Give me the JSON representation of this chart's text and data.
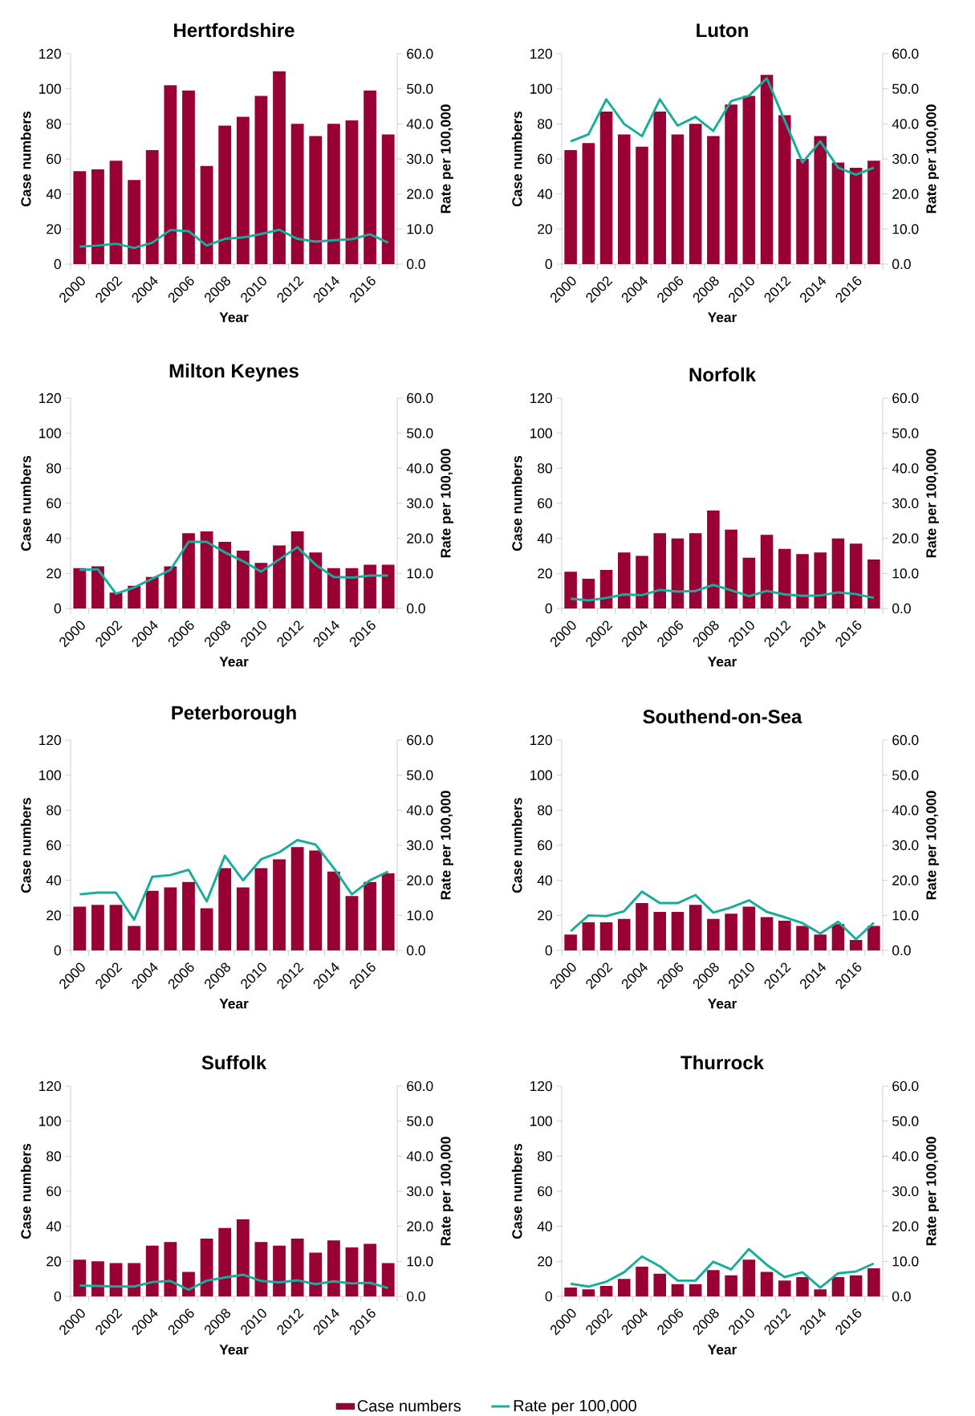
{
  "chart_data": [
    {
      "type": "bar",
      "title": "Hertfordshire",
      "xlabel": "Year",
      "ylabel": "Case numbers",
      "y2label": "Rate per 100,000",
      "categories": [
        "2000",
        null,
        "2002",
        null,
        "2004",
        null,
        "2006",
        null,
        "2008",
        null,
        "2010",
        null,
        "2012",
        null,
        "2014",
        null,
        "2016",
        null
      ],
      "ylim": [
        0,
        120
      ],
      "yticks": [
        0,
        20,
        40,
        60,
        80,
        100,
        120
      ],
      "y2lim": [
        0,
        60
      ],
      "y2ticks": [
        {
          "value": 0,
          "label": "0.0"
        },
        {
          "value": 10,
          "label": "10.0"
        },
        {
          "value": 20,
          "label": "20.0"
        },
        {
          "value": 30,
          "label": "30.0"
        },
        {
          "value": 40,
          "label": "40.0"
        },
        {
          "value": 50,
          "label": "50.0"
        },
        {
          "value": 60,
          "label": "60.0"
        }
      ],
      "series": [
        {
          "type": "bar",
          "color": "#990033",
          "values": [
            53,
            54,
            59,
            48,
            65,
            102,
            99,
            56,
            79,
            84,
            96,
            110,
            80,
            73,
            80,
            82,
            99,
            74
          ]
        },
        {
          "type": "line",
          "axis": "y2",
          "color": "#17ad9d",
          "values": [
            5.0,
            5.3,
            5.8,
            4.6,
            6.1,
            9.7,
            9.4,
            5.3,
            7.2,
            7.6,
            8.6,
            9.8,
            7.2,
            6.4,
            6.8,
            7.1,
            8.5,
            6.1
          ]
        }
      ]
    },
    {
      "type": "bar",
      "title": "Luton",
      "xlabel": "Year",
      "ylabel": "Case numbers",
      "y2label": "Rate per 100,000",
      "categories": [
        "2000",
        null,
        "2002",
        null,
        "2004",
        null,
        "2006",
        null,
        "2008",
        null,
        "2010",
        null,
        "2012",
        null,
        "2014",
        null,
        "2016",
        null
      ],
      "ylim": [
        0,
        120
      ],
      "yticks": [
        0,
        20,
        40,
        60,
        80,
        100,
        120
      ],
      "y2lim": [
        0,
        60
      ],
      "y2ticks": [
        {
          "value": 0,
          "label": "0.0"
        },
        {
          "value": 10,
          "label": "10.0"
        },
        {
          "value": 20,
          "label": "20.0"
        },
        {
          "value": 30,
          "label": "30.0"
        },
        {
          "value": 40,
          "label": "40.0"
        },
        {
          "value": 50,
          "label": "50.0"
        },
        {
          "value": 60,
          "label": "60.0"
        }
      ],
      "series": [
        {
          "type": "bar",
          "color": "#990033",
          "values": [
            65,
            69,
            87,
            74,
            67,
            87,
            74,
            80,
            73,
            91,
            96,
            108,
            85,
            60,
            73,
            58,
            55,
            59
          ]
        },
        {
          "type": "line",
          "axis": "y2",
          "color": "#17ad9d",
          "values": [
            35,
            37,
            47,
            40,
            36.5,
            47,
            39.5,
            42,
            38,
            46.5,
            48,
            53,
            41,
            29,
            35,
            27.5,
            25.5,
            27.5
          ]
        }
      ]
    },
    {
      "type": "bar",
      "title": "Milton Keynes",
      "xlabel": "Year",
      "ylabel": "Case numbers",
      "y2label": "Rate per 100,000",
      "categories": [
        "2000",
        null,
        "2002",
        null,
        "2004",
        null,
        "2006",
        null,
        "2008",
        null,
        "2010",
        null,
        "2012",
        null,
        "2014",
        null,
        "2016",
        null
      ],
      "ylim": [
        0,
        120
      ],
      "yticks": [
        0,
        20,
        40,
        60,
        80,
        100,
        120
      ],
      "y2lim": [
        0,
        60
      ],
      "y2ticks": [
        {
          "value": 0,
          "label": "0.0"
        },
        {
          "value": 10,
          "label": "10.0"
        },
        {
          "value": 20,
          "label": "20.0"
        },
        {
          "value": 30,
          "label": "30.0"
        },
        {
          "value": 40,
          "label": "40.0"
        },
        {
          "value": 50,
          "label": "50.0"
        },
        {
          "value": 60,
          "label": "60.0"
        }
      ],
      "series": [
        {
          "type": "bar",
          "color": "#990033",
          "values": [
            23,
            24,
            9,
            13,
            18,
            24,
            43,
            44,
            38,
            33,
            26,
            36,
            44,
            32,
            23,
            23,
            25,
            25
          ]
        },
        {
          "type": "line",
          "axis": "y2",
          "color": "#17ad9d",
          "values": [
            11,
            11.2,
            4.2,
            6,
            8.5,
            11,
            19,
            19,
            16,
            13.5,
            10.5,
            14,
            17.5,
            12.5,
            9,
            8.8,
            9.4,
            9.4
          ]
        }
      ]
    },
    {
      "type": "bar",
      "title": "Norfolk",
      "xlabel": "Year",
      "ylabel": "Case numbers",
      "y2label": "Rate per 100,000",
      "categories": [
        "2000",
        null,
        "2002",
        null,
        "2004",
        null,
        "2006",
        null,
        "2008",
        null,
        "2010",
        null,
        "2012",
        null,
        "2014",
        null,
        "2016",
        null
      ],
      "ylim": [
        0,
        120
      ],
      "yticks": [
        0,
        20,
        40,
        60,
        80,
        100,
        120
      ],
      "y2lim": [
        0,
        60
      ],
      "y2ticks": [
        {
          "value": 0,
          "label": "0.0"
        },
        {
          "value": 10,
          "label": "10.0"
        },
        {
          "value": 20,
          "label": "20.0"
        },
        {
          "value": 30,
          "label": "30.0"
        },
        {
          "value": 40,
          "label": "40.0"
        },
        {
          "value": 50,
          "label": "50.0"
        },
        {
          "value": 60,
          "label": "60.0"
        }
      ],
      "series": [
        {
          "type": "bar",
          "color": "#990033",
          "values": [
            21,
            17,
            22,
            32,
            30,
            43,
            40,
            43,
            56,
            45,
            29,
            42,
            34,
            31,
            32,
            40,
            37,
            28
          ]
        },
        {
          "type": "line",
          "axis": "y2",
          "color": "#17ad9d",
          "values": [
            2.8,
            2.3,
            3.0,
            4.0,
            3.8,
            5.3,
            4.8,
            5.0,
            6.7,
            5.2,
            3.5,
            5.0,
            4.0,
            3.6,
            3.7,
            4.6,
            4.1,
            3.0
          ]
        }
      ]
    },
    {
      "type": "bar",
      "title": "Peterborough",
      "xlabel": "Year",
      "ylabel": "Case numbers",
      "y2label": "Rate per 100,000",
      "categories": [
        "2000",
        null,
        "2002",
        null,
        "2004",
        null,
        "2006",
        null,
        "2008",
        null,
        "2010",
        null,
        "2012",
        null,
        "2014",
        null,
        "2016",
        null
      ],
      "ylim": [
        0,
        120
      ],
      "yticks": [
        0,
        20,
        40,
        60,
        80,
        100,
        120
      ],
      "y2lim": [
        0,
        60
      ],
      "y2ticks": [
        {
          "value": 0,
          "label": "0.0"
        },
        {
          "value": 10,
          "label": "10.0"
        },
        {
          "value": 20,
          "label": "20.0"
        },
        {
          "value": 30,
          "label": "30.0"
        },
        {
          "value": 40,
          "label": "40.0"
        },
        {
          "value": 50,
          "label": "50.0"
        },
        {
          "value": 60,
          "label": "60.0"
        }
      ],
      "series": [
        {
          "type": "bar",
          "color": "#990033",
          "values": [
            25,
            26,
            26,
            14,
            34,
            36,
            39,
            24,
            47,
            36,
            47,
            52,
            59,
            57,
            45,
            31,
            39,
            44
          ]
        },
        {
          "type": "line",
          "axis": "y2",
          "color": "#17ad9d",
          "values": [
            16,
            16.5,
            16.5,
            8.8,
            21,
            21.5,
            23,
            14,
            27,
            20,
            26,
            28,
            31.5,
            30.2,
            23.5,
            16,
            20,
            22.5
          ]
        }
      ]
    },
    {
      "type": "bar",
      "title": "Southend-on-Sea",
      "xlabel": "Year",
      "ylabel": "Case numbers",
      "y2label": "Rate per 100,000",
      "categories": [
        "2000",
        null,
        "2002",
        null,
        "2004",
        null,
        "2006",
        null,
        "2008",
        null,
        "2010",
        null,
        "2012",
        null,
        "2014",
        null,
        "2016",
        null
      ],
      "ylim": [
        0,
        120
      ],
      "yticks": [
        0,
        20,
        40,
        60,
        80,
        100,
        120
      ],
      "y2lim": [
        0,
        60
      ],
      "y2ticks": [
        {
          "value": 0,
          "label": "0.0"
        },
        {
          "value": 10,
          "label": "10.0"
        },
        {
          "value": 20,
          "label": "20.0"
        },
        {
          "value": 30,
          "label": "30.0"
        },
        {
          "value": 40,
          "label": "40.0"
        },
        {
          "value": 50,
          "label": "50.0"
        },
        {
          "value": 60,
          "label": "60.0"
        }
      ],
      "series": [
        {
          "type": "bar",
          "color": "#990033",
          "values": [
            9,
            16,
            16,
            18,
            27,
            22,
            22,
            26,
            18,
            21,
            25,
            19,
            17,
            14,
            9,
            15,
            6,
            14
          ]
        },
        {
          "type": "line",
          "axis": "y2",
          "color": "#17ad9d",
          "values": [
            5.5,
            10,
            9.8,
            11.2,
            16.8,
            13.5,
            13.5,
            15.8,
            10.8,
            12.3,
            14.3,
            11,
            9.5,
            7.8,
            4.8,
            8.2,
            3.2,
            7.9
          ]
        }
      ]
    },
    {
      "type": "bar",
      "title": "Suffolk",
      "xlabel": "Year",
      "ylabel": "Case numbers",
      "y2label": "Rate per 100,000",
      "categories": [
        "2000",
        null,
        "2002",
        null,
        "2004",
        null,
        "2006",
        null,
        "2008",
        null,
        "2010",
        null,
        "2012",
        null,
        "2014",
        null,
        "2016",
        null
      ],
      "ylim": [
        0,
        120
      ],
      "yticks": [
        0,
        20,
        40,
        60,
        80,
        100,
        120
      ],
      "y2lim": [
        0,
        60
      ],
      "y2ticks": [
        {
          "value": 0,
          "label": "0.0"
        },
        {
          "value": 10,
          "label": "10.0"
        },
        {
          "value": 20,
          "label": "20.0"
        },
        {
          "value": 30,
          "label": "30.0"
        },
        {
          "value": 40,
          "label": "40.0"
        },
        {
          "value": 50,
          "label": "50.0"
        },
        {
          "value": 60,
          "label": "60.0"
        }
      ],
      "series": [
        {
          "type": "bar",
          "color": "#990033",
          "values": [
            21,
            20,
            19,
            19,
            29,
            31,
            14,
            33,
            39,
            44,
            31,
            29,
            33,
            25,
            32,
            28,
            30,
            19
          ]
        },
        {
          "type": "line",
          "axis": "y2",
          "color": "#17ad9d",
          "values": [
            3.1,
            3.0,
            2.8,
            2.8,
            4.1,
            4.4,
            1.9,
            4.5,
            5.4,
            6.2,
            4.4,
            4.0,
            4.6,
            3.5,
            4.3,
            3.7,
            3.9,
            2.4
          ]
        }
      ]
    },
    {
      "type": "bar",
      "title": "Thurrock",
      "xlabel": "Year",
      "ylabel": "Case numbers",
      "y2label": "Rate per 100,000",
      "legend": "bottom",
      "categories": [
        "2000",
        null,
        "2002",
        null,
        "2004",
        null,
        "2006",
        null,
        "2008",
        null,
        "2010",
        null,
        "2012",
        null,
        "2014",
        null,
        "2016",
        null
      ],
      "ylim": [
        0,
        120
      ],
      "yticks": [
        0,
        20,
        40,
        60,
        80,
        100,
        120
      ],
      "y2lim": [
        0,
        60
      ],
      "y2ticks": [
        {
          "value": 0,
          "label": "0.0"
        },
        {
          "value": 10,
          "label": "10.0"
        },
        {
          "value": 20,
          "label": "20.0"
        },
        {
          "value": 30,
          "label": "30.0"
        },
        {
          "value": 40,
          "label": "40.0"
        },
        {
          "value": 50,
          "label": "50.0"
        },
        {
          "value": 60,
          "label": "60.0"
        }
      ],
      "series": [
        {
          "name": "Case numbers",
          "type": "bar",
          "color": "#990033",
          "values": [
            5,
            4,
            6,
            10,
            17,
            13,
            7,
            7,
            15,
            12,
            21,
            14,
            9,
            11,
            4,
            11,
            12,
            16
          ]
        },
        {
          "name": "Rate per 100,000",
          "type": "line",
          "axis": "y2",
          "color": "#17ad9d",
          "values": [
            3.6,
            2.8,
            4.2,
            6.9,
            11.4,
            8.6,
            4.5,
            4.5,
            9.9,
            7.7,
            13.5,
            9,
            5.5,
            6.9,
            2.5,
            6.6,
            7.1,
            9.4
          ]
        }
      ]
    }
  ]
}
